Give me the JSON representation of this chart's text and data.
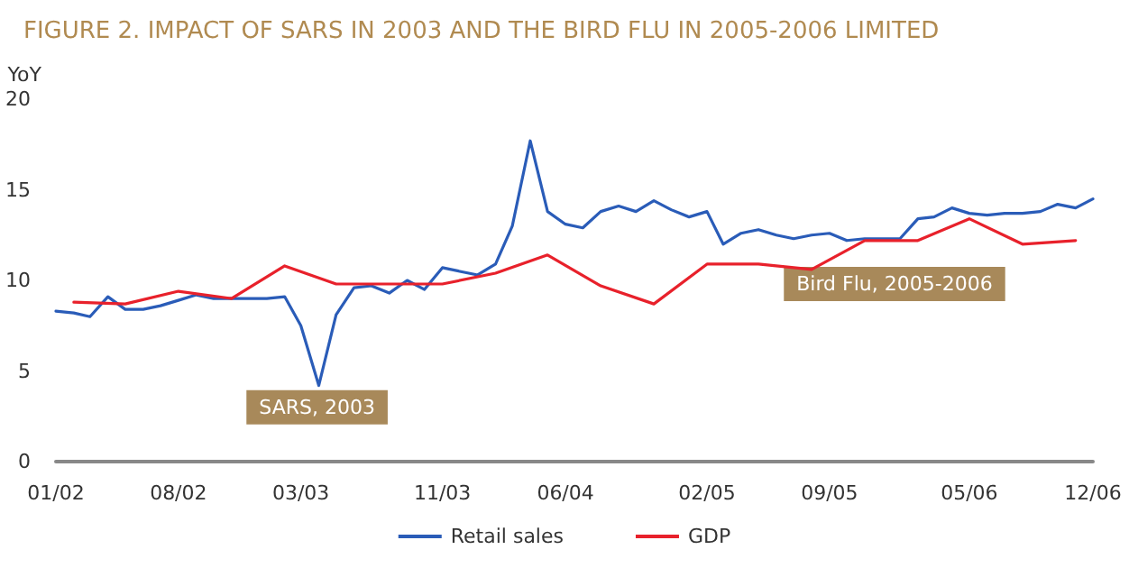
{
  "chart_data": {
    "type": "line",
    "title": "FIGURE 2. IMPACT OF SARS IN 2003 AND THE BIRD FLU IN 2005-2006 LIMITED",
    "ylabel": "YoY",
    "xlim": [
      "2002-01",
      "2006-12"
    ],
    "xticks": [
      {
        "value": "2002-01",
        "label": "01/02"
      },
      {
        "value": "2002-08",
        "label": "08/02"
      },
      {
        "value": "2003-03",
        "label": "03/03"
      },
      {
        "value": "2003-11",
        "label": "11/03"
      },
      {
        "value": "2004-06",
        "label": "06/04"
      },
      {
        "value": "2005-02",
        "label": "02/05"
      },
      {
        "value": "2005-09",
        "label": "09/05"
      },
      {
        "value": "2006-05",
        "label": "05/06"
      },
      {
        "value": "2006-12",
        "label": "12/06"
      }
    ],
    "ylim": [
      0,
      20
    ],
    "yticks": [
      0,
      5,
      10,
      15,
      20
    ],
    "grid": false,
    "legend": "bottom",
    "marker": "none",
    "line_style": "solid",
    "series": [
      {
        "name": "Retail sales",
        "color": "#2a5cb8",
        "x": [
          "2002-01",
          "2002-02",
          "2002-03",
          "2002-04",
          "2002-05",
          "2002-06",
          "2002-07",
          "2002-08",
          "2002-09",
          "2002-10",
          "2002-11",
          "2002-12",
          "2003-01",
          "2003-02",
          "2003-03",
          "2003-04",
          "2003-05",
          "2003-06",
          "2003-07",
          "2003-08",
          "2003-09",
          "2003-10",
          "2003-11",
          "2003-12",
          "2004-01",
          "2004-02",
          "2004-03",
          "2004-04",
          "2004-05",
          "2004-06",
          "2004-07",
          "2004-08",
          "2004-09",
          "2004-10",
          "2004-11",
          "2004-12",
          "2005-01",
          "2005-02",
          "2005-03",
          "2005-04",
          "2005-05",
          "2005-06",
          "2005-07",
          "2005-08",
          "2005-09",
          "2005-10",
          "2005-11",
          "2005-12",
          "2006-01",
          "2006-02",
          "2006-03",
          "2006-04",
          "2006-05",
          "2006-06",
          "2006-07",
          "2006-08",
          "2006-09",
          "2006-10",
          "2006-11",
          "2006-12"
        ],
        "values": [
          8.3,
          8.2,
          8.0,
          9.1,
          8.4,
          8.4,
          8.6,
          8.9,
          9.2,
          9.0,
          9.0,
          9.0,
          9.0,
          9.1,
          7.5,
          4.2,
          8.1,
          9.6,
          9.7,
          9.3,
          10.0,
          9.5,
          10.7,
          10.5,
          10.3,
          10.9,
          13.0,
          17.7,
          13.8,
          13.1,
          12.9,
          13.8,
          14.1,
          13.8,
          14.4,
          13.9,
          13.5,
          13.8,
          12.0,
          12.6,
          12.8,
          12.5,
          12.3,
          12.5,
          12.6,
          12.2,
          12.3,
          12.3,
          12.3,
          13.4,
          13.5,
          14.0,
          13.7,
          13.6,
          13.7,
          13.7,
          13.8,
          14.2,
          14.0,
          14.5
        ]
      },
      {
        "name": "GDP",
        "color": "#e8212b",
        "x": [
          "2002-02",
          "2002-05",
          "2002-08",
          "2002-11",
          "2003-02",
          "2003-05",
          "2003-08",
          "2003-11",
          "2004-02",
          "2004-05",
          "2004-08",
          "2004-11",
          "2005-02",
          "2005-05",
          "2005-08",
          "2005-11",
          "2006-02",
          "2006-05",
          "2006-08",
          "2006-11"
        ],
        "values": [
          8.8,
          8.7,
          9.4,
          9.0,
          10.8,
          9.8,
          9.8,
          9.8,
          10.4,
          11.4,
          9.7,
          8.7,
          10.9,
          10.9,
          10.6,
          12.2,
          12.2,
          13.4,
          12.0,
          12.2
        ]
      }
    ],
    "annotations": [
      "SARS, 2003",
      "Bird Flu, 2005-2006"
    ]
  }
}
